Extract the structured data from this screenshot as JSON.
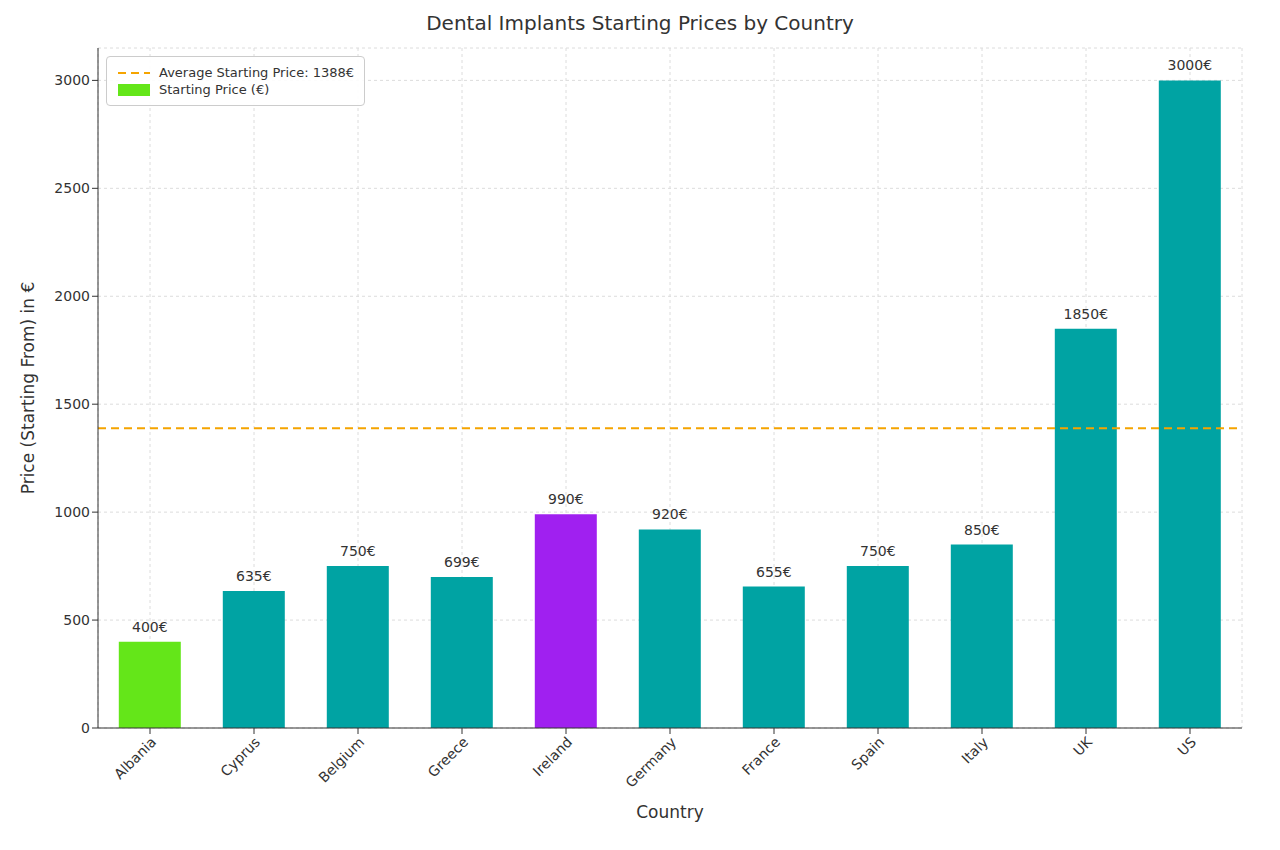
{
  "chart_data": {
    "type": "bar",
    "title": "Dental Implants Starting Prices by Country",
    "x_label": "Country",
    "y_label": "Price (Starting From) in €",
    "categories": [
      "Albania",
      "Cyprus",
      "Belgium",
      "Greece",
      "Ireland",
      "Germany",
      "France",
      "Spain",
      "Italy",
      "UK",
      "US"
    ],
    "series": [
      {
        "name": "Starting Price (€)",
        "colors": [
          "#64e619",
          "#00a3a3",
          "#00a3a3",
          "#00a3a3",
          "#a020f0",
          "#00a3a3",
          "#00a3a3",
          "#00a3a3",
          "#00a3a3",
          "#00a3a3",
          "#00a3a3"
        ],
        "values": [
          400,
          635,
          750,
          699,
          990,
          920,
          655,
          750,
          850,
          1850,
          3000
        ],
        "value_labels": [
          "400€",
          "635€",
          "750€",
          "699€",
          "990€",
          "920€",
          "655€",
          "750€",
          "850€",
          "1850€",
          "3000€"
        ]
      }
    ],
    "reference_lines": [
      {
        "name": "Average Starting Price: 1388€",
        "value": 1388,
        "color": "#f5a400",
        "line_style": "dashed"
      }
    ],
    "ylim": [
      0,
      3150
    ],
    "yticks": [
      0,
      500,
      1000,
      1500,
      2000,
      2500,
      3000
    ],
    "grid": true,
    "legend": "upper left",
    "data_labels": true
  }
}
